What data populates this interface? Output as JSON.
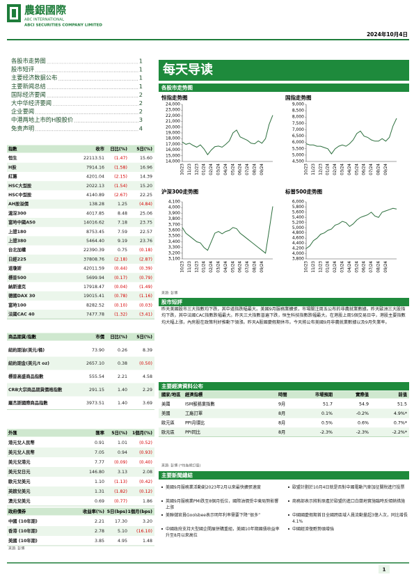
{
  "header": {
    "logo": "農銀國際",
    "company_en": "ABC INTERNATIONAL",
    "company_en2": "ABCI SECURITIES COMPANY LIMITED",
    "date": "2024年10月4日"
  },
  "toc": [
    {
      "title": "各股市走势图",
      "page": "1"
    },
    {
      "title": "股市短评",
      "page": "1"
    },
    {
      "title": "主要经济数据公布",
      "page": "1"
    },
    {
      "title": "主要新闻总结",
      "page": "1"
    },
    {
      "title": "国际经济要闻",
      "page": "2"
    },
    {
      "title": "大中华经济要闻",
      "page": "2"
    },
    {
      "title": "企业要闻",
      "page": "2"
    },
    {
      "title": "中港两地上市的H股股价",
      "page": "3"
    },
    {
      "title": "免责声明",
      "page": "4"
    }
  ],
  "index_table": {
    "header": [
      "指數",
      "收市",
      "日比(%)",
      "5日(%)"
    ],
    "rows": [
      [
        "恒生",
        "22113.51",
        "(1.47)",
        "15.60"
      ],
      [
        "H股",
        "7914.16",
        "(1.58)",
        "16.96"
      ],
      [
        "紅籌",
        "4201.04",
        "(2.15)",
        "14.39"
      ],
      [
        "HSC大型股",
        "2022.13",
        "(1.54)",
        "15.20"
      ],
      [
        "HSC中型股",
        "4140.89",
        "(2.67)",
        "22.25"
      ],
      [
        "AH股溢價",
        "138.28",
        "1.25",
        "(4.84)"
      ],
      [
        "滬深300",
        "4017.85",
        "8.48",
        "25.06"
      ],
      [
        "富時中國A50",
        "14016.62",
        "7.18",
        "23.75"
      ],
      [
        "上證180",
        "8753.45",
        "7.59",
        "22.57"
      ],
      [
        "上證380",
        "5464.40",
        "9.19",
        "23.76"
      ],
      [
        "台北加權",
        "22390.39",
        "0.75",
        "(0.18)"
      ],
      [
        "日經225",
        "37808.76",
        "(2.18)",
        "(2.87)"
      ],
      [
        "道瓊斯",
        "42011.59",
        "(0.44)",
        "(0.39)"
      ],
      [
        "標普500",
        "5699.94",
        "(0.17)",
        "(0.79)"
      ],
      [
        "納斯達克",
        "17918.47",
        "(0.04)",
        "(1.49)"
      ],
      [
        "德國DAX 30",
        "19015.41",
        "(0.78)",
        "(1.16)"
      ],
      [
        "富時100",
        "8282.52",
        "(0.10)",
        "(0.03)"
      ],
      [
        "法國CAC 40",
        "7477.78",
        "(1.32)",
        "(3.41)"
      ]
    ]
  },
  "commodity_table": {
    "header": [
      "商品期貨/指數",
      "市價",
      "日比(%)",
      "5日(%)"
    ],
    "rows": [
      [
        "紐約期油(美元/桶)",
        "73.90",
        "0.26",
        "8.39"
      ],
      [
        "紐約期金(美元/t oz)",
        "2657.10",
        "0.38",
        "(0.50)"
      ],
      [
        "標普高盛商品指數",
        "555.54",
        "2.21",
        "4.58"
      ],
      [
        "CRB大宗商品期貨價格指數",
        "291.15",
        "1.40",
        "2.29"
      ],
      [
        "羅杰斯國際商品指數",
        "3973.51",
        "1.40",
        "3.69"
      ]
    ]
  },
  "fx_table": {
    "header": [
      "外匯",
      "匯率",
      "5日(%)",
      "1個月(%)"
    ],
    "rows": [
      [
        "港元兌人民幣",
        "0.91",
        "1.01",
        "(0.52)"
      ],
      [
        "美元兌人民幣",
        "7.05",
        "0.94",
        "(0.93)"
      ],
      [
        "美元兌港元",
        "7.77",
        "(0.09)",
        "(0.40)"
      ],
      [
        "美元兌日元",
        "146.80",
        "3.13",
        "2.08"
      ],
      [
        "歐元兌美元",
        "1.10",
        "(1.13)",
        "(0.42)"
      ],
      [
        "英鎊兌美元",
        "1.31",
        "(1.82)",
        "(0.12)"
      ],
      [
        "澳元兌美元",
        "0.69",
        "(0.77)",
        "1.86"
      ]
    ]
  },
  "bond_table": {
    "header": [
      "政府債券",
      "收益率(%)",
      "5日(bps)",
      "1個月(bps)"
    ],
    "rows": [
      [
        "中國 (10年期)",
        "2.21",
        "17.30",
        "3.20"
      ],
      [
        "香港 (10年期)",
        "2.78",
        "5.10",
        "(16.10)"
      ],
      [
        "美國 (10年期)",
        "3.85",
        "4.95",
        "1.48"
      ]
    ]
  },
  "source_left": "來源: 彭博",
  "banner": "每天导读",
  "charts_section": "各股市走势图",
  "chart_data": [
    {
      "type": "line",
      "title": "恒指走势图",
      "color": "#2b6e3c",
      "categories": [
        "10/23",
        null,
        "11/23",
        null,
        "12/23",
        null,
        "01/24",
        null,
        "02/24",
        null,
        "03/24",
        null,
        "04/24",
        null,
        "05/24",
        null,
        "06/24",
        null,
        "07/24",
        null,
        "08/24",
        null,
        "09/24",
        null,
        null,
        null
      ],
      "values": [
        17400,
        17000,
        17200,
        16800,
        16500,
        16900,
        16200,
        15200,
        16000,
        16600,
        16700,
        16500,
        17000,
        17600,
        19000,
        19500,
        18300,
        18000,
        17700,
        17200,
        17100,
        17600,
        17200,
        18000,
        20500,
        22100
      ],
      "ylim": [
        14000,
        24000
      ],
      "yticks": [
        {
          "value": 24000,
          "label": "24,000"
        },
        {
          "value": 23000,
          "label": "23,000"
        },
        {
          "value": 22000,
          "label": "22,000"
        },
        {
          "value": 21000,
          "label": "21,000"
        },
        {
          "value": 20000,
          "label": "20,000"
        },
        {
          "value": 19000,
          "label": "19,000"
        },
        {
          "value": 18000,
          "label": "18,000"
        },
        {
          "value": 17000,
          "label": "17,000"
        },
        {
          "value": 16000,
          "label": "16,000"
        },
        {
          "value": 15000,
          "label": "15,000"
        },
        {
          "value": 14000,
          "label": "14,000"
        }
      ]
    },
    {
      "type": "line",
      "title": "国指走势图",
      "color": "#2b6e3c",
      "categories": [
        "10/23",
        null,
        "11/23",
        null,
        "12/23",
        null,
        "01/24",
        null,
        "02/24",
        null,
        "03/24",
        null,
        "04/24",
        null,
        "05/24",
        null,
        "06/24",
        null,
        "07/24",
        null,
        "08/24",
        null,
        "09/24",
        null,
        null,
        null
      ],
      "values": [
        5900,
        5800,
        5800,
        5700,
        5700,
        5600,
        5500,
        5100,
        5500,
        5700,
        5800,
        5700,
        5900,
        6200,
        6700,
        6900,
        6500,
        6400,
        6200,
        6100,
        6100,
        6300,
        6100,
        6400,
        7300,
        7900
      ],
      "ylim": [
        4500,
        9000
      ],
      "yticks": [
        {
          "value": 9000,
          "label": "9,000"
        },
        {
          "value": 8500,
          "label": "8,500"
        },
        {
          "value": 8000,
          "label": "8,000"
        },
        {
          "value": 7500,
          "label": "7,500"
        },
        {
          "value": 7000,
          "label": "7,000"
        },
        {
          "value": 6500,
          "label": "6,500"
        },
        {
          "value": 6000,
          "label": "6,000"
        },
        {
          "value": 5500,
          "label": "5,500"
        },
        {
          "value": 5000,
          "label": "5,000"
        },
        {
          "value": 4500,
          "label": "4,500"
        }
      ]
    },
    {
      "type": "line",
      "title": "沪深300走势图",
      "color": "#2b6e3c",
      "categories": [
        "10/23",
        null,
        "11/23",
        null,
        "12/23",
        null,
        "01/24",
        null,
        "02/24",
        null,
        "03/24",
        null,
        "04/24",
        null,
        "05/24",
        null,
        "06/24",
        null,
        "07/24",
        null,
        "08/24",
        null,
        "09/24",
        null,
        null,
        null
      ],
      "values": [
        3650,
        3550,
        3500,
        3450,
        3400,
        3380,
        3300,
        3250,
        3400,
        3550,
        3580,
        3540,
        3580,
        3600,
        3650,
        3630,
        3550,
        3500,
        3450,
        3400,
        3350,
        3300,
        3250,
        3200,
        3600,
        4020
      ],
      "ylim": [
        3100,
        4100
      ],
      "yticks": [
        {
          "value": 4100,
          "label": "4,100"
        },
        {
          "value": 4000,
          "label": "4,000"
        },
        {
          "value": 3900,
          "label": "3,900"
        },
        {
          "value": 3800,
          "label": "3,800"
        },
        {
          "value": 3700,
          "label": "3,700"
        },
        {
          "value": 3600,
          "label": "3,600"
        },
        {
          "value": 3500,
          "label": "3,500"
        },
        {
          "value": 3400,
          "label": "3,400"
        },
        {
          "value": 3300,
          "label": "3,300"
        },
        {
          "value": 3200,
          "label": "3,200"
        },
        {
          "value": 3100,
          "label": "3,100"
        }
      ]
    },
    {
      "type": "line",
      "title": "标普500走势图",
      "color": "#2b6e3c",
      "categories": [
        "10/23",
        null,
        "11/23",
        null,
        "12/23",
        null,
        "01/24",
        null,
        "02/24",
        null,
        "03/24",
        null,
        "04/24",
        null,
        "05/24",
        null,
        "06/24",
        null,
        "07/24",
        null,
        "08/24",
        null,
        "09/24",
        null,
        null,
        null
      ],
      "values": [
        4200,
        4300,
        4500,
        4600,
        4750,
        4800,
        4900,
        4950,
        5100,
        5150,
        5250,
        5200,
        5050,
        5150,
        5300,
        5400,
        5450,
        5500,
        5600,
        5450,
        5400,
        5600,
        5650,
        5700,
        5750,
        5720
      ],
      "ylim": [
        3800,
        6000
      ],
      "yticks": [
        {
          "value": 6000,
          "label": "6,000"
        },
        {
          "value": 5800,
          "label": "5,800"
        },
        {
          "value": 5600,
          "label": "5,600"
        },
        {
          "value": 5400,
          "label": "5,400"
        },
        {
          "value": 5200,
          "label": "5,200"
        },
        {
          "value": 5000,
          "label": "5,000"
        },
        {
          "value": 4800,
          "label": "4,800"
        },
        {
          "value": 4600,
          "label": "4,600"
        },
        {
          "value": 4400,
          "label": "4,400"
        },
        {
          "value": 4200,
          "label": "4,200"
        },
        {
          "value": 4000,
          "label": "4,000"
        },
        {
          "value": 3800,
          "label": "3,800"
        }
      ]
    }
  ],
  "chart_source": "來源: 彭博",
  "commentary": {
    "title": "股市短評",
    "text": "昨天美國股市三大指數均下跌，其中道指跌幅最大。美國9月服務業擴張，市場關注周五公布的非農就業數據。昨天歐洲三大股指均下跌，其中法國CAC指數跌幅最大。昨天三大指數普遍下跌，恒生科技指數跌幅最大。在港股上周5個交易日中，港股主要指數均大幅上漲，內房股在政策利好推動下領漲。昨天A股國慶假期休市。今天將公布美國9月非農就業數據以及9月失業率。"
  },
  "econ": {
    "title": "主要經濟資料公布",
    "header": [
      "國家/地區",
      "經濟指標",
      "時間",
      "市場預期",
      "實際值",
      "前值"
    ],
    "rows": [
      [
        "美國",
        "ISM服務業指數",
        "9月",
        "51.7",
        "54.9",
        "51.5"
      ],
      [
        "美國",
        "工廠訂單",
        "8月",
        "0.1%",
        "-0.2%",
        "4.9%*"
      ],
      [
        "歐元區",
        "PPI月環比",
        "8月",
        "0.5%",
        "0.6%",
        "0.7%*"
      ],
      [
        "歐元區",
        "PPI同比",
        "8月",
        "-2.3%",
        "-2.3%",
        "-2.2%*"
      ]
    ],
    "note": "來源: 彭博 (*均為修訂值)"
  },
  "news": {
    "title": "主要新聞總結",
    "left": [
      "美國9月服務業活動創2023年2月以來最快擴張速度",
      "英國9月服務業PMI跌至8個月低位，國際油價受中東局勢影響上漲",
      "美聯儲官員Goolsbee表示明年利率需要下降“很多”",
      "中國政府支持大型國企開展併購重組，美國10年期國債收益率升至8月以來高位"
    ],
    "right": [
      "歐盟計劃於10月4日就是否對中國電動汽車加征關稅進行投票",
      "商務部表示將對原產於歐盟的進口白蘭地實施臨時反傾銷措施",
      "中國國慶假期首日全國跨區域人員流動量超3億人次，同比增長4.1%",
      "中國經濟復甦勢頭增強"
    ]
  },
  "page_number": "1"
}
